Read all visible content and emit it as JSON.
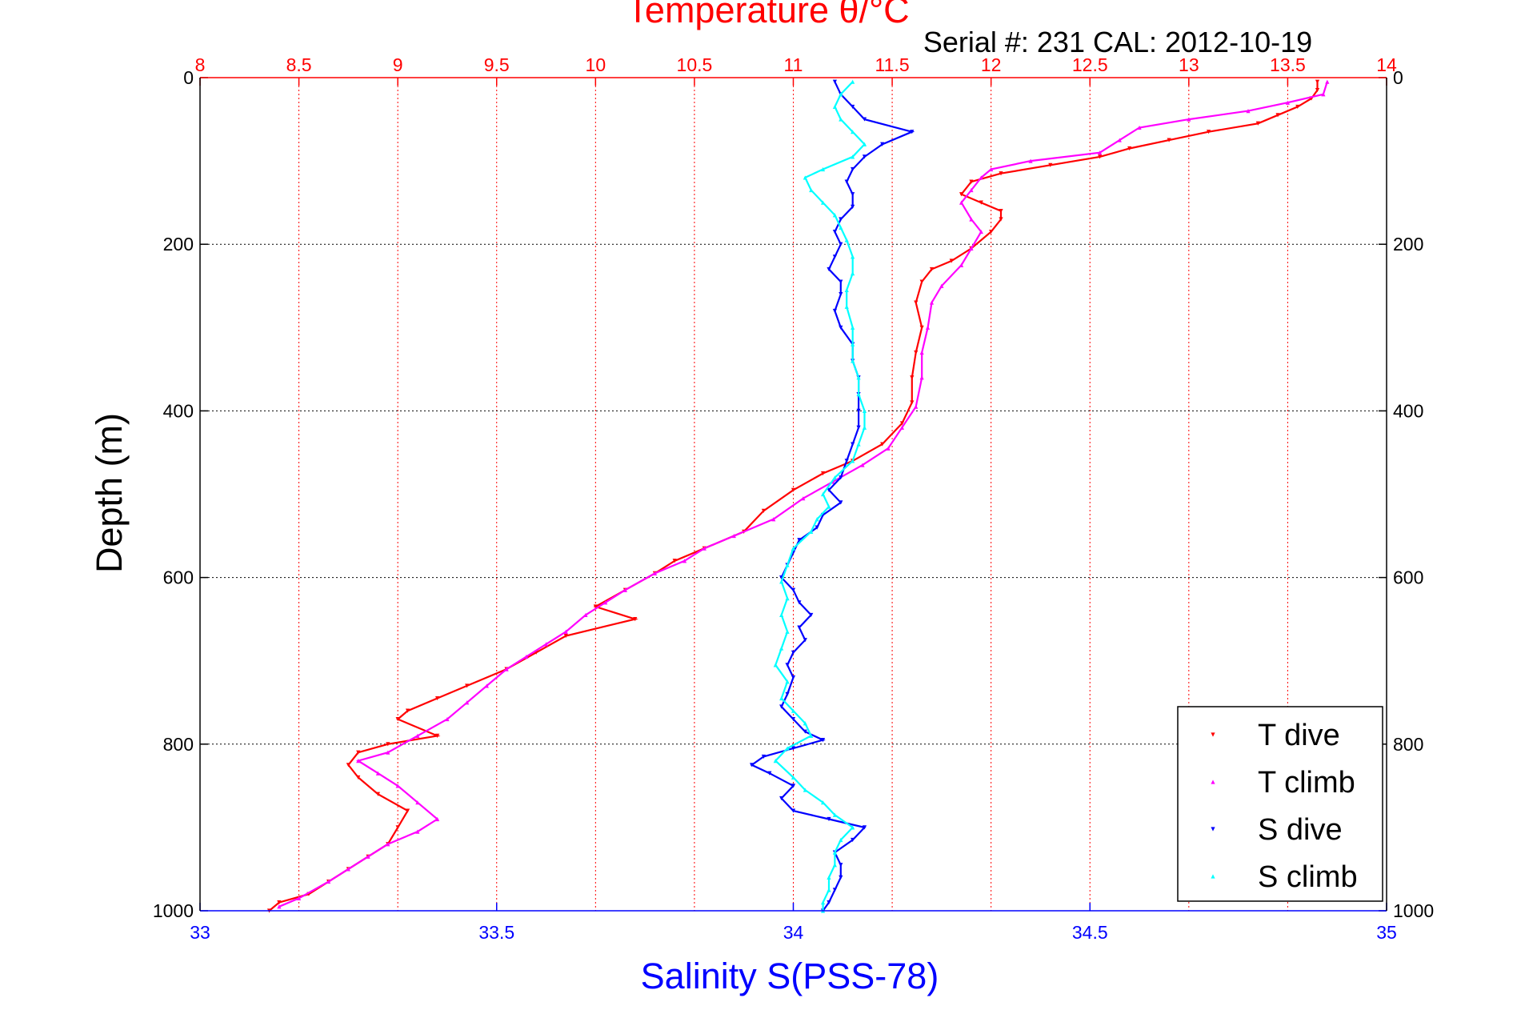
{
  "header": {
    "title": "Temperature θ/°C",
    "serial": "Serial #: 231  CAL: 2012-10-19"
  },
  "colors": {
    "t_axis": "#ff0000",
    "s_axis": "#0000ff",
    "t_dive": "#ff0000",
    "t_climb": "#ff00ff",
    "s_dive": "#0000ff",
    "s_climb": "#00ffff",
    "grid_depth": "#000000"
  },
  "chart_data": {
    "type": "scatter",
    "title": "Temperature θ/°C",
    "xlabel": "Salinity S(PSS-78)",
    "ylabel": "Depth (m)",
    "x_top_label": "Temperature θ/°C",
    "annotation": "Serial #: 231  CAL: 2012-10-19",
    "depth_lim": [
      0,
      1000
    ],
    "depth_reversed": true,
    "depth_ticks": [
      "0",
      "200",
      "400",
      "600",
      "800",
      "1000"
    ],
    "temperature_lim": [
      8,
      14
    ],
    "temperature_ticks": [
      "8",
      "8.5",
      "9",
      "9.5",
      "10",
      "10.5",
      "11",
      "11.5",
      "12",
      "12.5",
      "13",
      "13.5",
      "14"
    ],
    "salinity_lim": [
      33,
      35
    ],
    "salinity_ticks": [
      "33",
      "33.5",
      "34",
      "34.5",
      "35"
    ],
    "grid": true,
    "legend_position": "bottom-right",
    "series": [
      {
        "name": "T dive",
        "axis": "temperature",
        "marker": "triangle-down",
        "points": [
          [
            13.65,
            5
          ],
          [
            13.65,
            15
          ],
          [
            13.62,
            25
          ],
          [
            13.55,
            35
          ],
          [
            13.45,
            45
          ],
          [
            13.35,
            55
          ],
          [
            13.1,
            65
          ],
          [
            12.9,
            75
          ],
          [
            12.7,
            85
          ],
          [
            12.55,
            95
          ],
          [
            12.3,
            105
          ],
          [
            12.05,
            115
          ],
          [
            11.9,
            125
          ],
          [
            11.85,
            140
          ],
          [
            11.95,
            150
          ],
          [
            12.05,
            160
          ],
          [
            12.05,
            170
          ],
          [
            12.0,
            185
          ],
          [
            11.9,
            205
          ],
          [
            11.8,
            220
          ],
          [
            11.7,
            230
          ],
          [
            11.65,
            245
          ],
          [
            11.62,
            270
          ],
          [
            11.65,
            300
          ],
          [
            11.62,
            330
          ],
          [
            11.6,
            360
          ],
          [
            11.6,
            390
          ],
          [
            11.55,
            415
          ],
          [
            11.45,
            440
          ],
          [
            11.3,
            460
          ],
          [
            11.15,
            475
          ],
          [
            11.0,
            495
          ],
          [
            10.85,
            520
          ],
          [
            10.75,
            545
          ],
          [
            10.55,
            565
          ],
          [
            10.4,
            580
          ],
          [
            10.3,
            595
          ],
          [
            10.15,
            615
          ],
          [
            10.0,
            635
          ],
          [
            10.2,
            650
          ],
          [
            9.85,
            670
          ],
          [
            9.7,
            690
          ],
          [
            9.55,
            710
          ],
          [
            9.35,
            730
          ],
          [
            9.2,
            745
          ],
          [
            9.05,
            760
          ],
          [
            9.0,
            770
          ],
          [
            9.2,
            790
          ],
          [
            8.95,
            800
          ],
          [
            8.8,
            810
          ],
          [
            8.75,
            825
          ],
          [
            8.8,
            840
          ],
          [
            8.9,
            860
          ],
          [
            9.05,
            880
          ],
          [
            9.0,
            900
          ],
          [
            8.95,
            920
          ],
          [
            8.85,
            935
          ],
          [
            8.75,
            950
          ],
          [
            8.65,
            965
          ],
          [
            8.55,
            980
          ],
          [
            8.4,
            990
          ],
          [
            8.35,
            1000
          ]
        ]
      },
      {
        "name": "T climb",
        "axis": "temperature",
        "marker": "triangle-up",
        "points": [
          [
            13.7,
            5
          ],
          [
            13.68,
            20
          ],
          [
            13.5,
            30
          ],
          [
            13.3,
            40
          ],
          [
            13.0,
            50
          ],
          [
            12.75,
            60
          ],
          [
            12.65,
            75
          ],
          [
            12.55,
            90
          ],
          [
            12.2,
            100
          ],
          [
            12.0,
            110
          ],
          [
            11.95,
            120
          ],
          [
            11.9,
            135
          ],
          [
            11.85,
            150
          ],
          [
            11.9,
            170
          ],
          [
            11.95,
            185
          ],
          [
            11.9,
            205
          ],
          [
            11.85,
            225
          ],
          [
            11.75,
            250
          ],
          [
            11.7,
            270
          ],
          [
            11.68,
            300
          ],
          [
            11.65,
            330
          ],
          [
            11.65,
            360
          ],
          [
            11.62,
            395
          ],
          [
            11.55,
            420
          ],
          [
            11.48,
            445
          ],
          [
            11.35,
            465
          ],
          [
            11.2,
            485
          ],
          [
            11.05,
            505
          ],
          [
            10.9,
            530
          ],
          [
            10.7,
            550
          ],
          [
            10.55,
            565
          ],
          [
            10.45,
            580
          ],
          [
            10.3,
            595
          ],
          [
            10.15,
            615
          ],
          [
            10.05,
            630
          ],
          [
            9.95,
            645
          ],
          [
            9.85,
            665
          ],
          [
            9.75,
            680
          ],
          [
            9.65,
            695
          ],
          [
            9.55,
            710
          ],
          [
            9.45,
            730
          ],
          [
            9.35,
            750
          ],
          [
            9.25,
            770
          ],
          [
            9.1,
            790
          ],
          [
            8.95,
            810
          ],
          [
            8.8,
            820
          ],
          [
            8.9,
            835
          ],
          [
            9.0,
            850
          ],
          [
            9.1,
            870
          ],
          [
            9.2,
            890
          ],
          [
            9.1,
            905
          ],
          [
            8.95,
            920
          ],
          [
            8.85,
            935
          ],
          [
            8.75,
            950
          ],
          [
            8.65,
            965
          ],
          [
            8.5,
            985
          ],
          [
            8.4,
            995
          ]
        ]
      },
      {
        "name": "S dive",
        "axis": "salinity",
        "marker": "triangle-down",
        "points": [
          [
            34.07,
            5
          ],
          [
            34.08,
            20
          ],
          [
            34.1,
            35
          ],
          [
            34.12,
            50
          ],
          [
            34.2,
            65
          ],
          [
            34.15,
            80
          ],
          [
            34.12,
            95
          ],
          [
            34.1,
            110
          ],
          [
            34.09,
            125
          ],
          [
            34.1,
            140
          ],
          [
            34.1,
            155
          ],
          [
            34.08,
            170
          ],
          [
            34.07,
            185
          ],
          [
            34.08,
            200
          ],
          [
            34.07,
            215
          ],
          [
            34.06,
            230
          ],
          [
            34.08,
            245
          ],
          [
            34.08,
            260
          ],
          [
            34.07,
            280
          ],
          [
            34.08,
            300
          ],
          [
            34.1,
            320
          ],
          [
            34.1,
            340
          ],
          [
            34.11,
            360
          ],
          [
            34.11,
            380
          ],
          [
            34.11,
            400
          ],
          [
            34.11,
            420
          ],
          [
            34.1,
            440
          ],
          [
            34.09,
            460
          ],
          [
            34.08,
            480
          ],
          [
            34.06,
            495
          ],
          [
            34.08,
            510
          ],
          [
            34.05,
            525
          ],
          [
            34.04,
            540
          ],
          [
            34.01,
            555
          ],
          [
            34.0,
            570
          ],
          [
            33.99,
            585
          ],
          [
            33.98,
            600
          ],
          [
            34.0,
            615
          ],
          [
            34.01,
            630
          ],
          [
            34.03,
            645
          ],
          [
            34.01,
            660
          ],
          [
            34.02,
            675
          ],
          [
            34.0,
            690
          ],
          [
            33.99,
            705
          ],
          [
            34.0,
            720
          ],
          [
            33.99,
            740
          ],
          [
            33.98,
            755
          ],
          [
            34.0,
            770
          ],
          [
            34.02,
            785
          ],
          [
            34.05,
            795
          ],
          [
            34.0,
            805
          ],
          [
            33.95,
            815
          ],
          [
            33.93,
            825
          ],
          [
            33.96,
            835
          ],
          [
            34.0,
            850
          ],
          [
            33.98,
            865
          ],
          [
            34.0,
            880
          ],
          [
            34.06,
            890
          ],
          [
            34.12,
            900
          ],
          [
            34.1,
            915
          ],
          [
            34.07,
            930
          ],
          [
            34.08,
            945
          ],
          [
            34.08,
            960
          ],
          [
            34.07,
            975
          ],
          [
            34.06,
            990
          ],
          [
            34.05,
            1000
          ]
        ]
      },
      {
        "name": "S climb",
        "axis": "salinity",
        "marker": "triangle-up",
        "points": [
          [
            34.1,
            5
          ],
          [
            34.08,
            20
          ],
          [
            34.07,
            35
          ],
          [
            34.08,
            50
          ],
          [
            34.1,
            65
          ],
          [
            34.12,
            80
          ],
          [
            34.1,
            95
          ],
          [
            34.05,
            110
          ],
          [
            34.02,
            120
          ],
          [
            34.03,
            135
          ],
          [
            34.05,
            150
          ],
          [
            34.07,
            165
          ],
          [
            34.08,
            180
          ],
          [
            34.09,
            195
          ],
          [
            34.1,
            215
          ],
          [
            34.1,
            235
          ],
          [
            34.09,
            255
          ],
          [
            34.09,
            275
          ],
          [
            34.1,
            300
          ],
          [
            34.1,
            320
          ],
          [
            34.1,
            340
          ],
          [
            34.11,
            360
          ],
          [
            34.11,
            380
          ],
          [
            34.12,
            400
          ],
          [
            34.12,
            420
          ],
          [
            34.11,
            440
          ],
          [
            34.1,
            460
          ],
          [
            34.07,
            480
          ],
          [
            34.05,
            500
          ],
          [
            34.06,
            515
          ],
          [
            34.04,
            530
          ],
          [
            34.03,
            545
          ],
          [
            34.0,
            565
          ],
          [
            33.99,
            585
          ],
          [
            33.98,
            605
          ],
          [
            33.99,
            625
          ],
          [
            33.98,
            645
          ],
          [
            33.99,
            665
          ],
          [
            33.98,
            685
          ],
          [
            33.97,
            705
          ],
          [
            33.99,
            725
          ],
          [
            33.98,
            745
          ],
          [
            34.0,
            760
          ],
          [
            34.02,
            775
          ],
          [
            34.03,
            790
          ],
          [
            33.99,
            805
          ],
          [
            33.97,
            820
          ],
          [
            34.0,
            840
          ],
          [
            34.02,
            855
          ],
          [
            34.05,
            870
          ],
          [
            34.07,
            885
          ],
          [
            34.1,
            900
          ],
          [
            34.08,
            915
          ],
          [
            34.07,
            930
          ],
          [
            34.07,
            945
          ],
          [
            34.06,
            960
          ],
          [
            34.06,
            975
          ],
          [
            34.05,
            990
          ],
          [
            34.05,
            1000
          ]
        ]
      }
    ]
  }
}
